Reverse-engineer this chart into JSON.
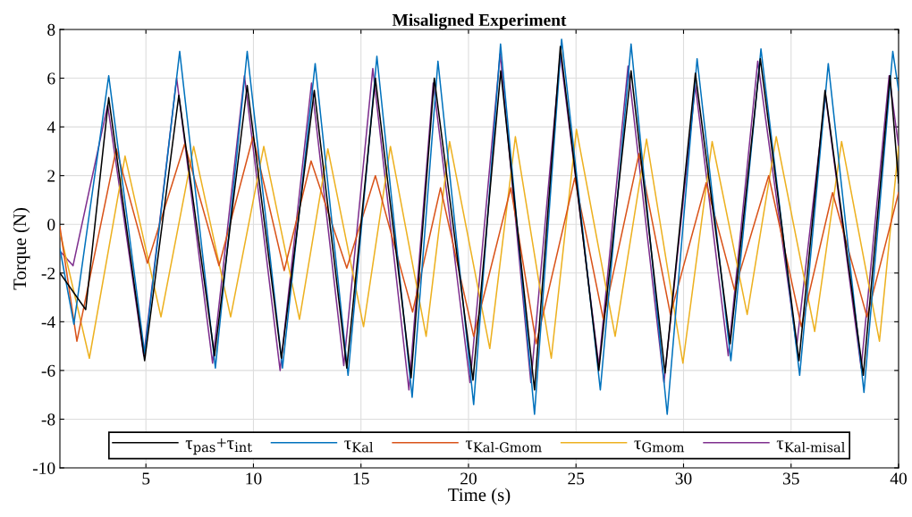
{
  "chart_data": {
    "type": "line",
    "title": "Misaligned Experiment",
    "xlabel": "Time (s)",
    "ylabel": "Torque (N)",
    "xlim": [
      1,
      40
    ],
    "xticks": [
      5,
      10,
      15,
      20,
      25,
      30,
      35,
      40
    ],
    "ylim": [
      -10,
      8
    ],
    "yticks": [
      -10,
      -8,
      -6,
      -4,
      -2,
      0,
      2,
      4,
      6,
      8
    ],
    "grid": true,
    "legend": "bottom",
    "line_style": "solid",
    "marker": "none",
    "series": [
      {
        "name": "τ$_{pas}$+τ$_{int}$",
        "color": "#000000",
        "x": [
          1,
          2.2,
          3.27,
          4.94,
          6.53,
          8.19,
          9.71,
          11.3,
          12.83,
          14.34,
          15.67,
          17.33,
          18.41,
          20.21,
          21.5,
          23.07,
          24.27,
          26.06,
          27.56,
          29.14,
          30.55,
          32.17,
          33.57,
          35.37,
          36.58,
          38.36,
          39.6,
          40
        ],
        "values": [
          -2,
          -3.5,
          5.2,
          -5.6,
          5.3,
          -5.4,
          5.7,
          -5.5,
          5.5,
          -5.9,
          6,
          -6.3,
          6,
          -6.4,
          6.3,
          -6.8,
          7.3,
          -6,
          6.3,
          -6.1,
          6.2,
          -4.9,
          6.8,
          -5.6,
          5.5,
          -6.2,
          6.1,
          1.7
        ]
      },
      {
        "name": "τ$_{Kal}$",
        "color": "#0072bd",
        "x": [
          1,
          1.65,
          3.27,
          4.94,
          6.57,
          8.23,
          9.71,
          11.35,
          12.87,
          14.4,
          15.74,
          17.38,
          18.58,
          20.24,
          21.49,
          23.07,
          24.33,
          26.13,
          27.56,
          29.24,
          30.63,
          32.2,
          33.6,
          35.4,
          36.73,
          38.39,
          39.73,
          40
        ],
        "values": [
          -1,
          -4.1,
          6.1,
          -5.3,
          7.1,
          -5.9,
          7.1,
          -5.9,
          6.6,
          -6.2,
          6.9,
          -7.1,
          6.7,
          -7.4,
          7.4,
          -7.8,
          7.6,
          -6.8,
          7.4,
          -7.8,
          6.8,
          -5.6,
          7.2,
          -6.2,
          6.6,
          -6.9,
          7.1,
          5.5
        ]
      },
      {
        "name": "τ$_{Kal-Gmom}$",
        "color": "#d95319",
        "x": [
          1,
          1.79,
          3.62,
          5.07,
          6.8,
          8.4,
          9.98,
          11.43,
          12.68,
          14.34,
          15.67,
          17.4,
          18.7,
          20.24,
          21.97,
          23.15,
          24.94,
          26.27,
          27.93,
          29.39,
          31.05,
          32.37,
          33.96,
          35.48,
          36.93,
          38.53,
          40
        ],
        "values": [
          -0.1,
          -4.8,
          3.1,
          -1.6,
          3.3,
          -1.7,
          3.6,
          -1.9,
          2.6,
          -1.8,
          2,
          -3.6,
          1.5,
          -4.6,
          1.5,
          -4.9,
          1.9,
          -3.9,
          2.9,
          -3.7,
          1.7,
          -2.7,
          2,
          -4.2,
          1.3,
          -3.8,
          1.3
        ]
      },
      {
        "name": "τ$_{Gmom}$",
        "color": "#edb120",
        "x": [
          1,
          2.37,
          4.03,
          5.7,
          7.22,
          8.94,
          10.48,
          12.14,
          13.46,
          15.12,
          16.37,
          18.03,
          19.12,
          20.99,
          22.18,
          23.85,
          25.02,
          26.82,
          28.28,
          29.97,
          31.33,
          32.96,
          34.31,
          36.1,
          37.35,
          39.11,
          40
        ],
        "values": [
          -0.3,
          -5.5,
          2.8,
          -3.8,
          3.2,
          -3.8,
          3.2,
          -3.9,
          3.1,
          -4.2,
          3.2,
          -4.6,
          3.4,
          -5.1,
          3.6,
          -5.5,
          3.9,
          -4.6,
          3.5,
          -5.7,
          3.4,
          -3.7,
          3.6,
          -4.4,
          3.4,
          -4.8,
          3.2
        ]
      },
      {
        "name": "τ$_{Kal-misal}$",
        "color": "#7e2f8e",
        "x": [
          1,
          1.61,
          3.22,
          4.9,
          6.43,
          8.1,
          9.58,
          11.24,
          12.7,
          14.2,
          15.55,
          17.23,
          18.36,
          20.07,
          21.47,
          22.9,
          24.27,
          26.06,
          27.42,
          29.09,
          30.55,
          32.08,
          33.45,
          35.26,
          36.6,
          38.26,
          39.56,
          40
        ],
        "values": [
          -1.1,
          -1.7,
          4.9,
          -5.4,
          6,
          -5.7,
          6.1,
          -6,
          5.8,
          -5.8,
          6.4,
          -6.8,
          5.8,
          -6.5,
          7,
          -6.5,
          7,
          -5.8,
          6.5,
          -6.5,
          5.7,
          -5.4,
          6.7,
          -5,
          5.3,
          -5.9,
          6.1,
          3.2
        ]
      }
    ]
  }
}
